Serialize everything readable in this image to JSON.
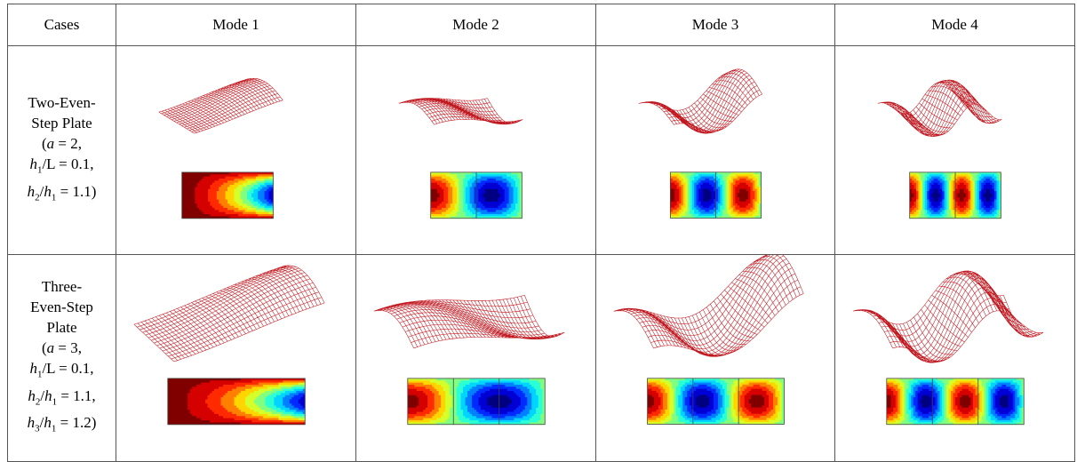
{
  "header": {
    "cases": "Cases",
    "modes": [
      "Mode 1",
      "Mode 2",
      "Mode 3",
      "Mode 4"
    ]
  },
  "rows": [
    {
      "case_lines": [
        "Two-Even-",
        "Step Plate",
        "(a = 2,",
        "h1/L = 0.1,",
        "h2/h1 = 1.1)"
      ],
      "steps": 2
    },
    {
      "case_lines": [
        "Three-",
        "Even-Step",
        "Plate",
        "(a = 3,",
        "h1/L = 0.1,",
        "h2/h1 = 1.1,",
        "h3/h1 = 1.2)"
      ],
      "steps": 3
    }
  ],
  "colors": {
    "mesh": "#c0161e",
    "border": "#555555"
  }
}
